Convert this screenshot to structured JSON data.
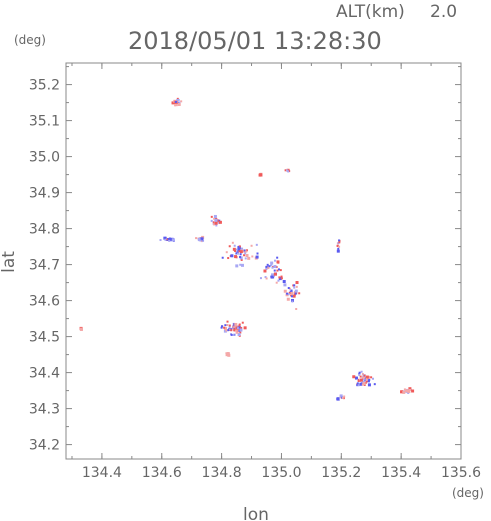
{
  "header": {
    "altitude_label": "ALT(km)",
    "altitude_value": "2.0",
    "timestamp": "2018/05/01 13:28:30",
    "y_unit": "(deg)",
    "x_unit": "(deg)"
  },
  "chart_data": {
    "type": "scatter",
    "xlabel": "lon",
    "ylabel": "lat",
    "xlim": [
      134.28,
      135.6
    ],
    "ylim": [
      34.16,
      35.26
    ],
    "x_ticks": [
      134.4,
      134.6,
      134.8,
      135.0,
      135.2,
      135.4,
      135.6
    ],
    "x_tick_labels": [
      "134.4",
      "134.6",
      "134.8",
      "135.0",
      "135.2",
      "135.4",
      "135.6"
    ],
    "y_ticks": [
      34.2,
      34.3,
      34.4,
      34.5,
      34.6,
      34.7,
      34.8,
      34.9,
      35.0,
      35.1,
      35.2
    ],
    "y_tick_labels": [
      "34.2",
      "34.3",
      "34.4",
      "34.5",
      "34.6",
      "34.7",
      "34.8",
      "34.9",
      "35.0",
      "35.1",
      "35.2"
    ],
    "grid": false,
    "colors": {
      "positive": "#f05a5a",
      "negative": "#5a5af0",
      "frame": "#888888"
    },
    "clusters": [
      {
        "lon": 134.33,
        "lat": 34.52,
        "count": 4,
        "spread_lon": 0.006,
        "spread_lat": 0.005,
        "red_ratio": 1.0
      },
      {
        "lon": 134.65,
        "lat": 35.15,
        "count": 18,
        "spread_lon": 0.02,
        "spread_lat": 0.02,
        "red_ratio": 0.5
      },
      {
        "lon": 134.62,
        "lat": 34.77,
        "count": 16,
        "spread_lon": 0.035,
        "spread_lat": 0.006,
        "red_ratio": 0.2
      },
      {
        "lon": 134.73,
        "lat": 34.77,
        "count": 12,
        "spread_lon": 0.02,
        "spread_lat": 0.008,
        "red_ratio": 0.4
      },
      {
        "lon": 134.78,
        "lat": 34.82,
        "count": 20,
        "spread_lon": 0.02,
        "spread_lat": 0.02,
        "red_ratio": 0.5
      },
      {
        "lon": 134.87,
        "lat": 34.73,
        "count": 50,
        "spread_lon": 0.07,
        "spread_lat": 0.04,
        "red_ratio": 0.45
      },
      {
        "lon": 134.98,
        "lat": 34.68,
        "count": 40,
        "spread_lon": 0.06,
        "spread_lat": 0.05,
        "red_ratio": 0.4
      },
      {
        "lon": 135.04,
        "lat": 34.62,
        "count": 30,
        "spread_lon": 0.04,
        "spread_lat": 0.05,
        "red_ratio": 0.45
      },
      {
        "lon": 134.85,
        "lat": 34.52,
        "count": 60,
        "spread_lon": 0.06,
        "spread_lat": 0.025,
        "red_ratio": 0.55
      },
      {
        "lon": 134.82,
        "lat": 34.45,
        "count": 6,
        "spread_lon": 0.008,
        "spread_lat": 0.006,
        "red_ratio": 0.9
      },
      {
        "lon": 134.93,
        "lat": 34.95,
        "count": 5,
        "spread_lon": 0.006,
        "spread_lat": 0.005,
        "red_ratio": 0.8
      },
      {
        "lon": 135.02,
        "lat": 34.96,
        "count": 6,
        "spread_lon": 0.01,
        "spread_lat": 0.004,
        "red_ratio": 0.8
      },
      {
        "lon": 135.19,
        "lat": 34.75,
        "count": 10,
        "spread_lon": 0.008,
        "spread_lat": 0.025,
        "red_ratio": 0.6
      },
      {
        "lon": 135.27,
        "lat": 34.38,
        "count": 45,
        "spread_lon": 0.05,
        "spread_lat": 0.03,
        "red_ratio": 0.5
      },
      {
        "lon": 135.2,
        "lat": 34.33,
        "count": 12,
        "spread_lon": 0.02,
        "spread_lat": 0.01,
        "red_ratio": 0.6
      },
      {
        "lon": 135.42,
        "lat": 34.35,
        "count": 20,
        "spread_lon": 0.03,
        "spread_lat": 0.01,
        "red_ratio": 0.6
      }
    ]
  }
}
